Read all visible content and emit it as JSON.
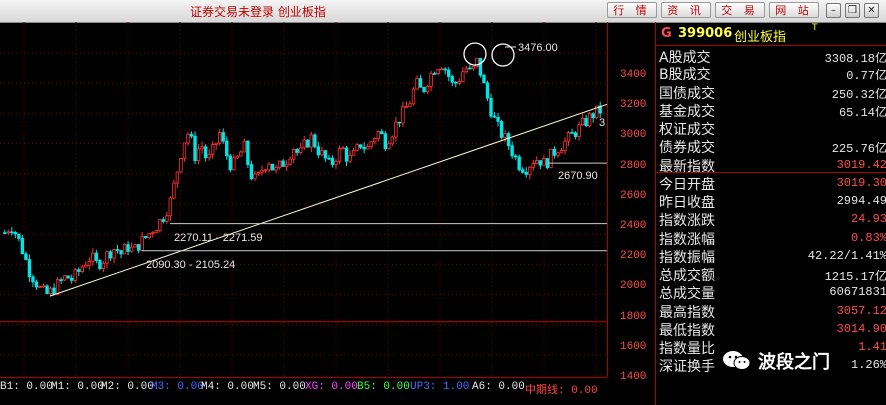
{
  "app": {
    "title": "证券交易未登录  创业板指",
    "buttons": [
      "行 情",
      "资 讯",
      "交 易",
      "网 站"
    ]
  },
  "chart_data": {
    "type": "candlestick",
    "axis": {
      "ymin": 1400,
      "ymax": 3500,
      "ticks": [
        3400,
        3200,
        3000,
        2800,
        2600,
        2400,
        2200,
        2000,
        1800,
        1600,
        1400
      ]
    },
    "annotations": {
      "high": "3476.00",
      "low": "2670.90",
      "band_upper": "2270.11 - 2271.59",
      "band_lower": "2090.30 - 2105.24",
      "edge_label": "3"
    },
    "reference_levels": [
      2270.11,
      2090.3,
      2670.9,
      1620
    ],
    "trendline": {
      "from_price": 1790,
      "to_price": 3060
    },
    "close_path": [
      2210,
      2260,
      2190,
      2080,
      1960,
      1890,
      1820,
      1800,
      1840,
      1880,
      1920,
      1900,
      1950,
      2010,
      2050,
      2000,
      2030,
      2080,
      2110,
      2070,
      2120,
      2090,
      2140,
      2180,
      2230,
      2270,
      2330,
      2420,
      2600,
      2800,
      2880,
      2720,
      2800,
      2680,
      2760,
      2870,
      2740,
      2640,
      2710,
      2780,
      2600,
      2550,
      2640,
      2690,
      2610,
      2660,
      2700,
      2780,
      2720,
      2800,
      2840,
      2760,
      2710,
      2650,
      2720,
      2770,
      2690,
      2730,
      2800,
      2760,
      2840,
      2880,
      2810,
      2870,
      2950,
      3010,
      3080,
      3200,
      3140,
      3230,
      3300,
      3340,
      3280,
      3180,
      3230,
      3310,
      3260,
      3350,
      3190,
      3050,
      2930,
      2860,
      2800,
      2720,
      2650,
      2640,
      2690,
      2700,
      2660,
      2720,
      2770,
      2800,
      2840,
      2880,
      2920,
      2960,
      3000,
      3019.42
    ],
    "series_ma": [
      "M1",
      "M2"
    ]
  },
  "indicators": [
    {
      "label": "B1: 0.00",
      "color": "#e6e6e6"
    },
    {
      "label": "M1: 0.00",
      "color": "#e6e6e6"
    },
    {
      "label": "M2: 0.00",
      "color": "#e6e6e6"
    },
    {
      "label": "M3: 0.00",
      "color": "#4f6bff"
    },
    {
      "label": "M4: 0.00",
      "color": "#e6e6e6"
    },
    {
      "label": "M5: 0.00",
      "color": "#e6e6e6"
    },
    {
      "label": "XG: 0.00",
      "color": "#ff44ff"
    },
    {
      "label": "B5: 0.00",
      "color": "#44ff44"
    },
    {
      "label": "UP3: 1.00",
      "color": "#4f6bff"
    },
    {
      "label": "A6: 0.00",
      "color": "#e6e6e6"
    },
    {
      "label": "中期线: 0.00",
      "color": "#ff4444"
    }
  ],
  "quote": {
    "g": "G",
    "code": "399006",
    "name": "创业板指",
    "mark": "T",
    "rows": [
      {
        "label": "A股成交",
        "value": "3308.18亿",
        "color": "#e6e6e6"
      },
      {
        "label": "B股成交",
        "value": "0.77亿",
        "color": "#e6e6e6"
      },
      {
        "label": "国债成交",
        "value": "250.32亿",
        "color": "#e6e6e6"
      },
      {
        "label": "基金成交",
        "value": "65.14亿",
        "color": "#e6e6e6"
      },
      {
        "label": "权证成交",
        "value": "",
        "color": "#e6e6e6"
      },
      {
        "label": "债券成交",
        "value": "225.76亿",
        "color": "#e6e6e6"
      },
      {
        "label": "最新指数",
        "value": "3019.42",
        "color": "#ff4d4d"
      },
      {
        "label": "今日开盘",
        "value": "3019.30",
        "color": "#ff4d4d"
      },
      {
        "label": "昨日收盘",
        "value": "2994.49",
        "color": "#e6e6e6"
      },
      {
        "label": "指数涨跌",
        "value": "24.93",
        "color": "#ff4d4d"
      },
      {
        "label": "指数涨幅",
        "value": "0.83%",
        "color": "#ff4d4d"
      },
      {
        "label": "指数振幅",
        "value": "42.22/1.41%",
        "color": "#e6e6e6"
      },
      {
        "label": "总成交额",
        "value": "1215.17亿",
        "color": "#e6e6e6"
      },
      {
        "label": "总成交量",
        "value": "60671831",
        "color": "#e6e6e6"
      },
      {
        "label": "最高指数",
        "value": "3057.12",
        "color": "#ff4d4d"
      },
      {
        "label": "最低指数",
        "value": "3014.90",
        "color": "#ff4d4d"
      },
      {
        "label": "指数量比",
        "value": "1.41",
        "color": "#ff4d4d"
      },
      {
        "label": "深证换手",
        "value": "1.26%",
        "color": "#e6e6e6"
      }
    ]
  },
  "watermark": "波段之门"
}
